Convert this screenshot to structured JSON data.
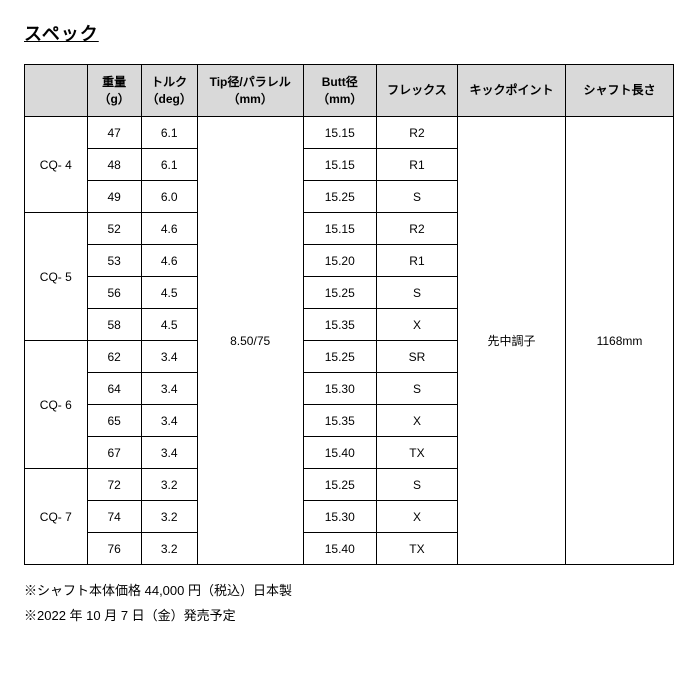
{
  "title": "スペック",
  "headers": {
    "corner": "",
    "weight": "重量\n（g）",
    "torque": "トルク\n（deg）",
    "tip": "Tip径/パラレル\n（mm）",
    "butt": "Butt径\n（mm）",
    "flex": "フレックス",
    "kick": "キックポイント",
    "length": "シャフト長さ"
  },
  "common": {
    "tip": "8.50/75",
    "kick": "先中調子",
    "length": "1168mm"
  },
  "groups": [
    {
      "model": "CQ- 4",
      "rows": [
        {
          "weight": "47",
          "torque": "6.1",
          "butt": "15.15",
          "flex": "R2"
        },
        {
          "weight": "48",
          "torque": "6.1",
          "butt": "15.15",
          "flex": "R1"
        },
        {
          "weight": "49",
          "torque": "6.0",
          "butt": "15.25",
          "flex": "S"
        }
      ]
    },
    {
      "model": "CQ- 5",
      "rows": [
        {
          "weight": "52",
          "torque": "4.6",
          "butt": "15.15",
          "flex": "R2"
        },
        {
          "weight": "53",
          "torque": "4.6",
          "butt": "15.20",
          "flex": "R1"
        },
        {
          "weight": "56",
          "torque": "4.5",
          "butt": "15.25",
          "flex": "S"
        },
        {
          "weight": "58",
          "torque": "4.5",
          "butt": "15.35",
          "flex": "X"
        }
      ]
    },
    {
      "model": "CQ- 6",
      "rows": [
        {
          "weight": "62",
          "torque": "3.4",
          "butt": "15.25",
          "flex": "SR"
        },
        {
          "weight": "64",
          "torque": "3.4",
          "butt": "15.30",
          "flex": "S"
        },
        {
          "weight": "65",
          "torque": "3.4",
          "butt": "15.35",
          "flex": "X"
        },
        {
          "weight": "67",
          "torque": "3.4",
          "butt": "15.40",
          "flex": "TX"
        }
      ]
    },
    {
      "model": "CQ- 7",
      "rows": [
        {
          "weight": "72",
          "torque": "3.2",
          "butt": "15.25",
          "flex": "S"
        },
        {
          "weight": "74",
          "torque": "3.2",
          "butt": "15.30",
          "flex": "X"
        },
        {
          "weight": "76",
          "torque": "3.2",
          "butt": "15.40",
          "flex": "TX"
        }
      ]
    }
  ],
  "notes": [
    "※シャフト本体価格 44,000 円（税込）日本製",
    "※2022 年 10 月 7 日（金）発売予定"
  ],
  "colors": {
    "header_bg": "#d9d9d9",
    "border": "#000000",
    "text": "#000000",
    "background": "#ffffff"
  },
  "typography": {
    "title_fontsize_pt": 14,
    "body_fontsize_pt": 9,
    "title_weight": "bold"
  }
}
